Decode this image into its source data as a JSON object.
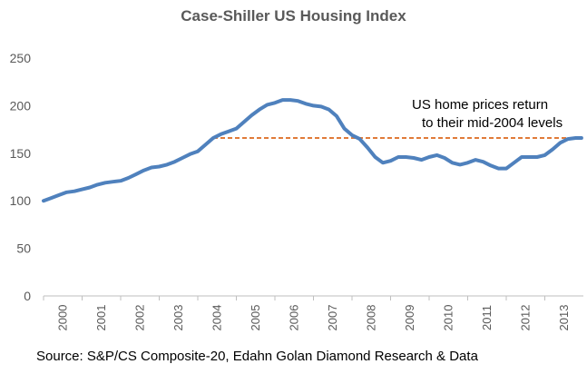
{
  "chart_data": {
    "type": "line",
    "title": "Case-Shiller US Housing Index",
    "source": "Source: S&P/CS Composite-20, Edahn Golan Diamond Research & Data",
    "ylim": [
      0,
      250
    ],
    "yticks": [
      0,
      50,
      100,
      150,
      200,
      250
    ],
    "xlim": [
      2000,
      2014
    ],
    "xticks": [
      "2000",
      "2001",
      "2002",
      "2003",
      "2004",
      "2005",
      "2006",
      "2007",
      "2008",
      "2009",
      "2010",
      "2011",
      "2012",
      "2013"
    ],
    "grid": false,
    "legend": "none",
    "series": [
      {
        "color": "#4f81bd",
        "x": [
          2000.0,
          2000.2,
          2000.4,
          2000.6,
          2000.8,
          2001.0,
          2001.2,
          2001.4,
          2001.6,
          2001.8,
          2002.0,
          2002.2,
          2002.4,
          2002.6,
          2002.8,
          2003.0,
          2003.2,
          2003.4,
          2003.6,
          2003.8,
          2004.0,
          2004.2,
          2004.4,
          2004.6,
          2004.8,
          2005.0,
          2005.2,
          2005.4,
          2005.6,
          2005.8,
          2006.0,
          2006.2,
          2006.4,
          2006.6,
          2006.8,
          2007.0,
          2007.2,
          2007.4,
          2007.6,
          2007.8,
          2008.0,
          2008.2,
          2008.4,
          2008.6,
          2008.8,
          2009.0,
          2009.2,
          2009.4,
          2009.6,
          2009.8,
          2010.0,
          2010.2,
          2010.4,
          2010.6,
          2010.8,
          2011.0,
          2011.2,
          2011.4,
          2011.6,
          2011.8,
          2012.0,
          2012.2,
          2012.4,
          2012.6,
          2012.8,
          2013.0,
          2013.2,
          2013.4,
          2013.6,
          2013.8,
          2013.95
        ],
        "y": [
          100,
          103,
          106,
          109,
          110,
          112,
          114,
          117,
          119,
          120,
          121,
          124,
          128,
          132,
          135,
          136,
          138,
          141,
          145,
          149,
          152,
          159,
          166,
          170,
          173,
          176,
          183,
          190,
          196,
          201,
          203,
          206,
          206,
          205,
          202,
          200,
          199,
          196,
          189,
          176,
          169,
          165,
          156,
          146,
          140,
          142,
          146,
          146,
          145,
          143,
          146,
          148,
          145,
          140,
          138,
          140,
          143,
          141,
          137,
          134,
          134,
          140,
          146,
          146,
          146,
          148,
          154,
          161,
          165,
          166,
          166
        ]
      }
    ],
    "reference_line": {
      "y": 166,
      "x_start": 2004.4,
      "x_end": 2013.95,
      "color": "#e07b39"
    },
    "annotation": [
      "US home prices return",
      "to their mid-2004 levels"
    ],
    "colors": {
      "axis": "#bfbfbf",
      "tick_text": "#595959"
    }
  }
}
